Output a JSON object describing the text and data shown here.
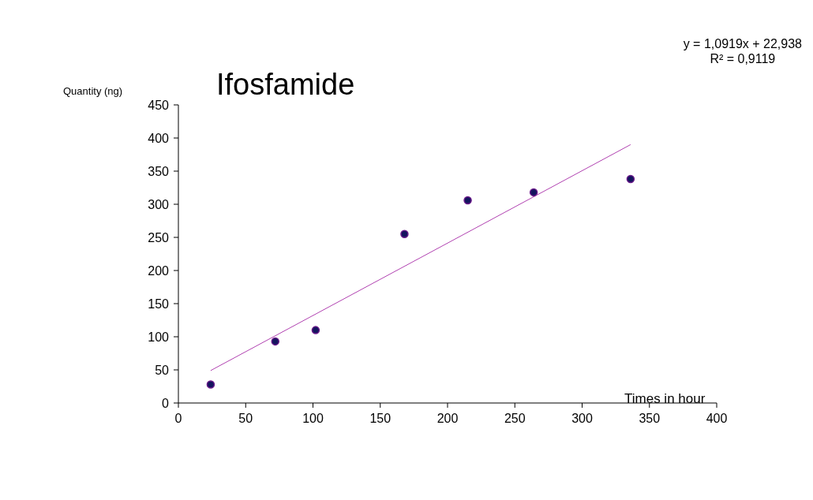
{
  "chart_data": {
    "type": "scatter",
    "title": "Ifosfamide",
    "xlabel": "Times in hour",
    "ylabel": "Quantity (ng)",
    "annotations": [
      "y = 1,0919x + 22,938",
      "R² = 0,9119"
    ],
    "xlim": [
      0,
      400
    ],
    "xticks": [
      0,
      50,
      100,
      150,
      200,
      250,
      300,
      350,
      400
    ],
    "ylim": [
      0,
      450
    ],
    "yticks": [
      0,
      50,
      100,
      150,
      200,
      250,
      300,
      350,
      400,
      450
    ],
    "marker": "circle",
    "series": [
      {
        "color": "#14145e",
        "x": [
          24,
          72,
          102,
          168,
          215,
          264,
          336
        ],
        "values": [
          28,
          93,
          110,
          255,
          306,
          318,
          338
        ]
      },
      {
        "type": "line",
        "color": "#b040b0",
        "x": [
          24,
          336
        ],
        "values": [
          49,
          390
        ],
        "line_style": "solid",
        "marker": "none"
      }
    ]
  }
}
